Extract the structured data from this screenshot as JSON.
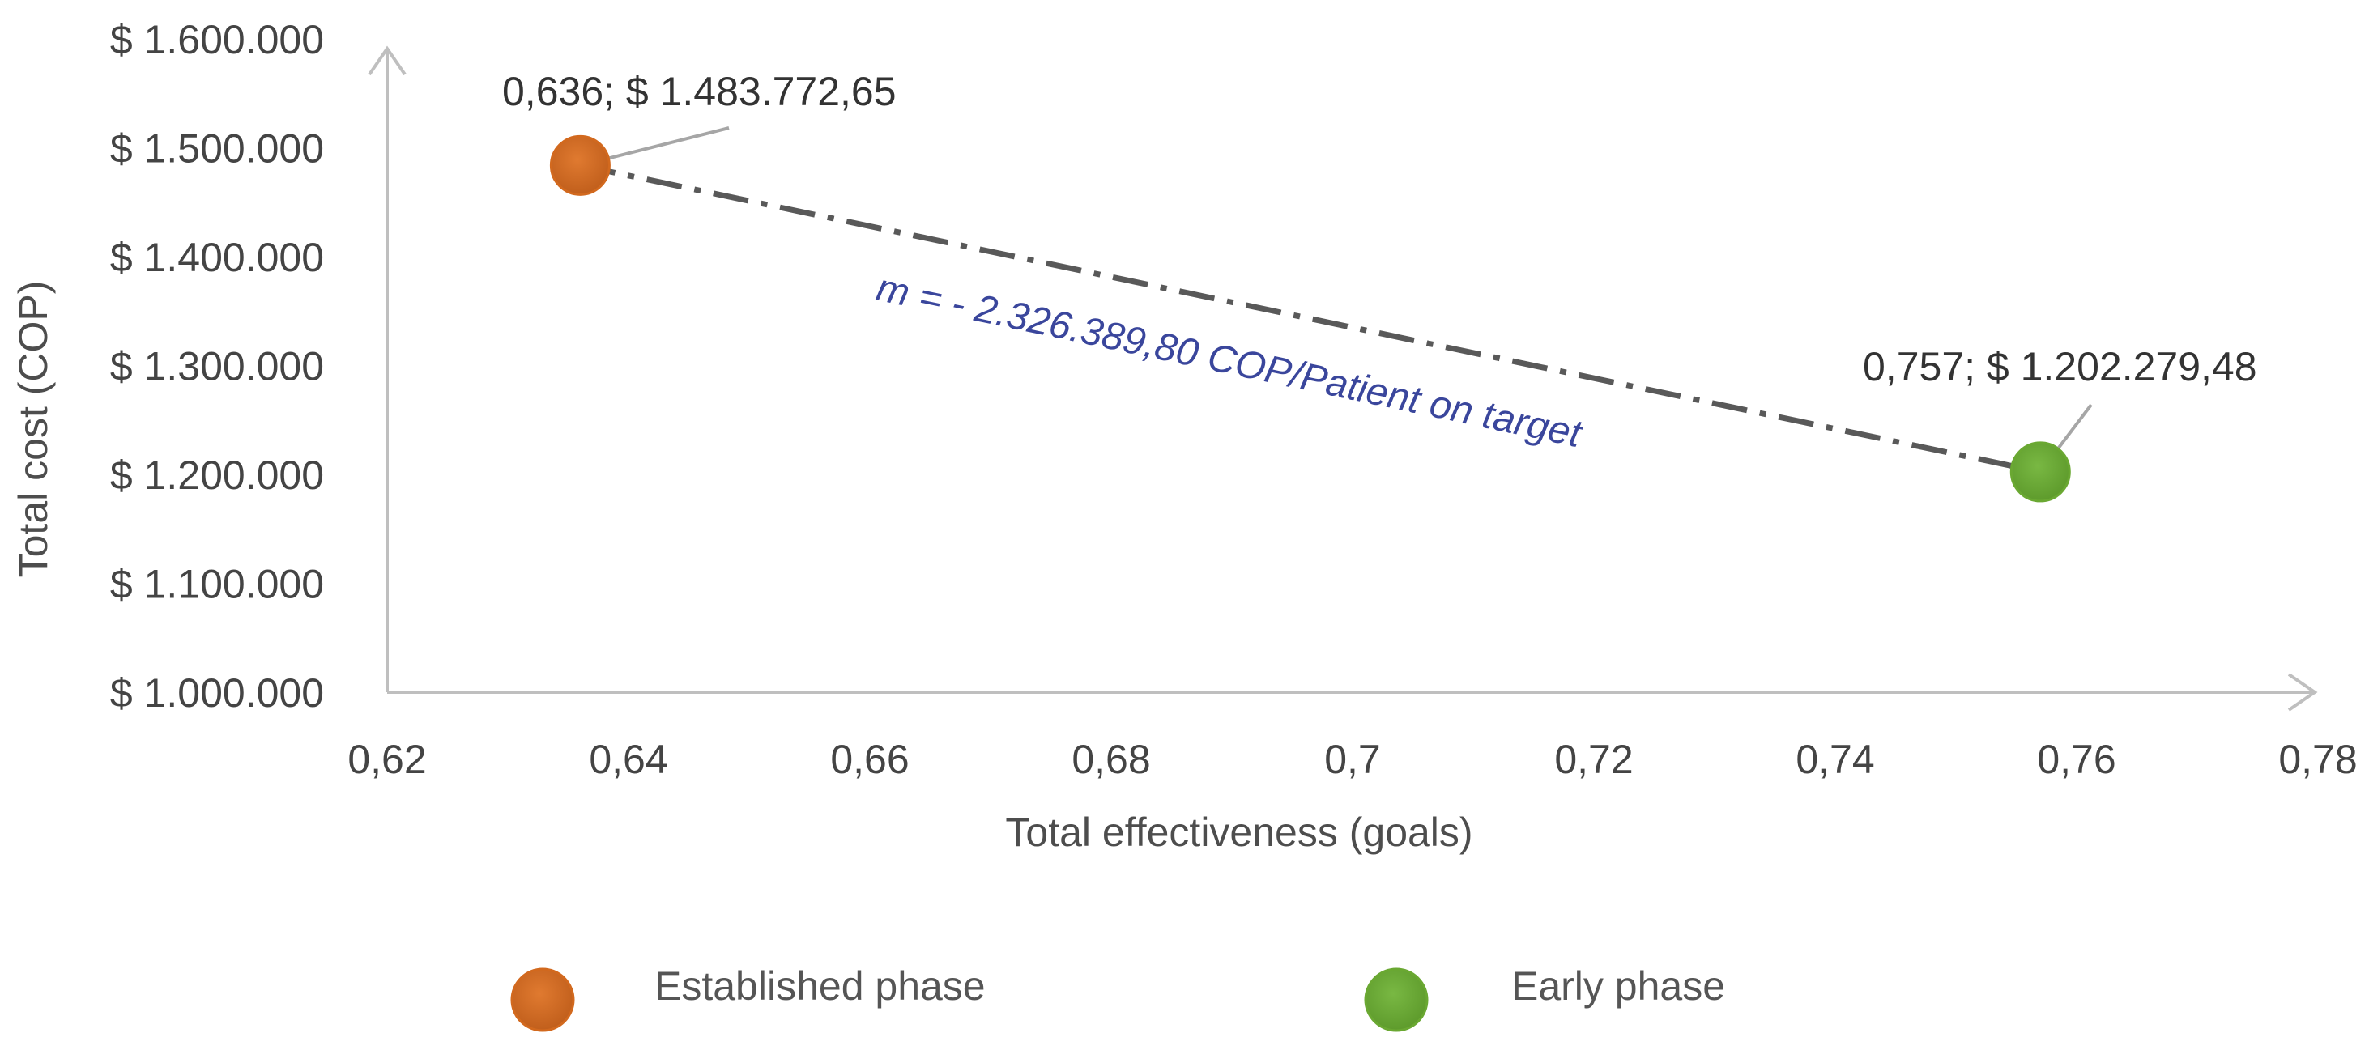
{
  "chart_data": {
    "type": "scatter",
    "title": "",
    "xlabel": "Total effectiveness (goals)",
    "ylabel": "Total cost (COP)",
    "xlim": [
      0.62,
      0.78
    ],
    "ylim": [
      1000000,
      1600000
    ],
    "x_ticks": [
      0.62,
      0.64,
      0.66,
      0.68,
      0.7,
      0.72,
      0.74,
      0.76,
      0.78
    ],
    "x_tick_labels": [
      "0,62",
      "0,64",
      "0,66",
      "0,68",
      "0,7",
      "0,72",
      "0,74",
      "0,76",
      "0,78"
    ],
    "y_ticks": [
      1000000,
      1100000,
      1200000,
      1300000,
      1400000,
      1500000,
      1600000
    ],
    "y_tick_labels": [
      "$ 1.000.000",
      "$ 1.100.000",
      "$ 1.200.000",
      "$ 1.300.000",
      "$ 1.400.000",
      "$ 1.500.000",
      "$ 1.600.000"
    ],
    "series": [
      {
        "name": "Established phase",
        "color": "#d2691e",
        "x": 0.636,
        "y": 1483772.65,
        "label": "0,636;  $ 1.483.772,65"
      },
      {
        "name": "Early phase",
        "color": "#6aa832",
        "x": 0.757,
        "y": 1202279.48,
        "label": "0,757;  $ 1.202.279,48"
      }
    ],
    "slope_line": {
      "style": "dash-dot",
      "color": "#595959",
      "label": "m =  - 2.326.389,80 COP/Patient on target",
      "label_color": "#3a469c"
    },
    "legend_placement": "bottom",
    "grid": false,
    "axis_color": "#bfbfbf"
  }
}
